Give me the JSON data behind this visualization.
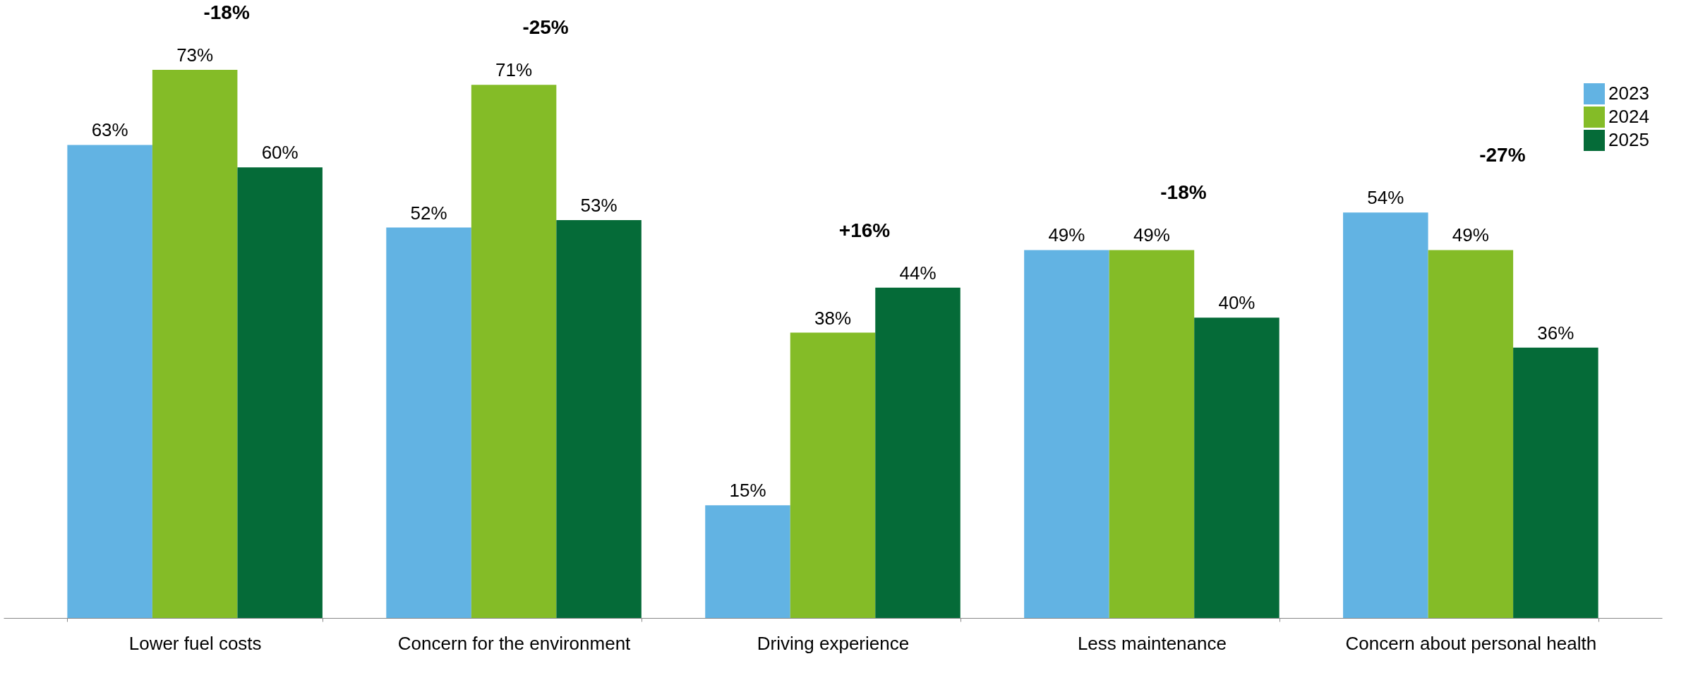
{
  "chart_data": {
    "type": "bar",
    "categories": [
      "Lower fuel costs",
      "Concern for the environment",
      "Driving experience",
      "Less maintenance",
      "Concern about personal health"
    ],
    "series": [
      {
        "name": "2023",
        "color": "#62b3e3",
        "values": [
          63,
          52,
          15,
          49,
          54
        ],
        "value_labels": [
          "63%",
          "52%",
          "15%",
          "49%",
          "54%"
        ]
      },
      {
        "name": "2024",
        "color": "#84bc27",
        "values": [
          73,
          71,
          38,
          49,
          49
        ],
        "value_labels": [
          "73%",
          "71%",
          "38%",
          "49%",
          "49%"
        ]
      },
      {
        "name": "2025",
        "color": "#056b38",
        "values": [
          60,
          53,
          44,
          40,
          36
        ],
        "value_labels": [
          "60%",
          "53%",
          "44%",
          "40%",
          "36%"
        ]
      }
    ],
    "legend": "top right",
    "annotations": [
      "-18%",
      "-25%",
      "+16%",
      "-18%",
      "-27%"
    ]
  }
}
